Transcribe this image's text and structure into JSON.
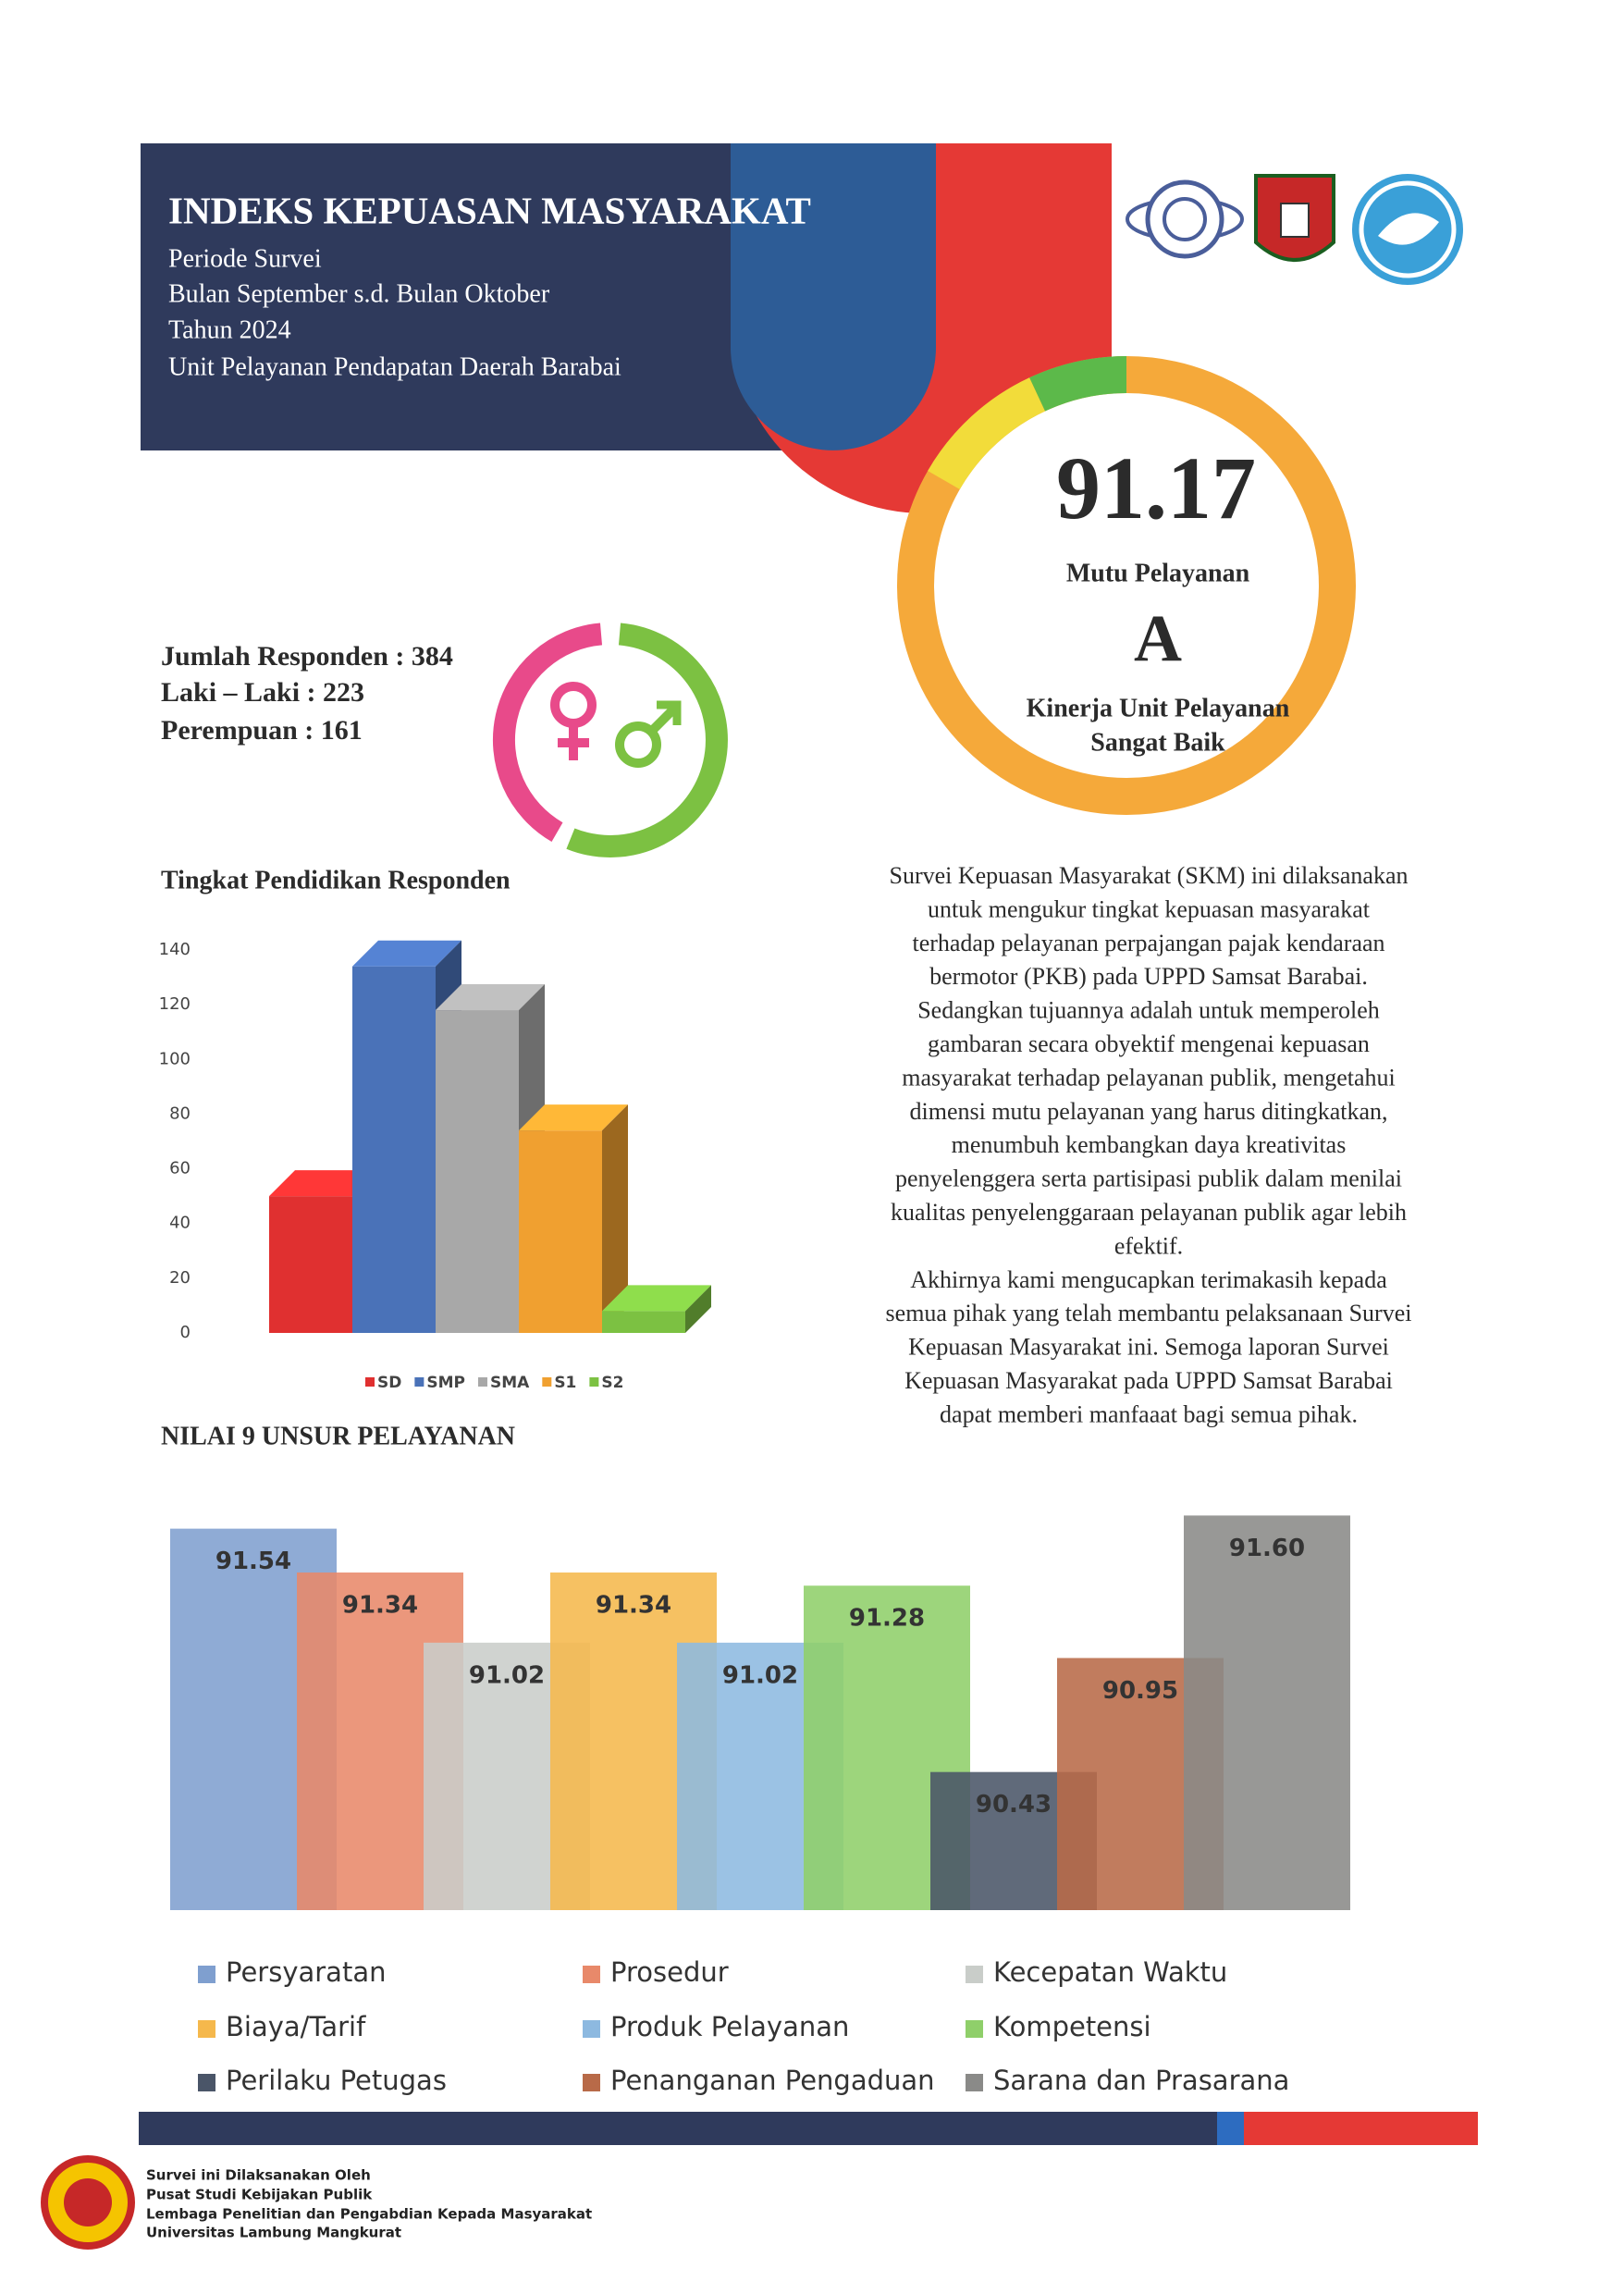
{
  "header": {
    "title": "INDEKS KEPUASAN MASYARAKAT",
    "lines": [
      "Periode Survei",
      "Bulan September s.d. Bulan Oktober",
      "Tahun 2024",
      "Unit Pelayanan Pendapatan Daerah Barabai"
    ]
  },
  "score": {
    "value": "91.17",
    "value_caption": "Mutu Pelayanan",
    "grade": "A",
    "grade_caption": [
      "Kinerja Unit Pelayanan",
      "Sangat Baik"
    ]
  },
  "respondents": [
    "Jumlah Responden : 384",
    "Laki – Laki : 223",
    "Perempuan : 161"
  ],
  "description": [
    [
      "Survei Kepuasan Masyarakat (SKM) ini dilaksanakan",
      "untuk mengukur tingkat kepuasan masyarakat",
      "terhadap pelayanan perpajangan pajak kendaraan",
      "bermotor (PKB) pada UPPD Samsat Barabai."
    ],
    [
      "Sedangkan tujuannya adalah untuk memperoleh",
      "gambaran secara obyektif mengenai kepuasan",
      "masyarakat terhadap pelayanan publik, mengetahui",
      "dimensi mutu pelayanan yang harus ditingkatkan,",
      "menumbuh kembangkan daya kreativitas",
      "penyelenggera serta partisipasi publik dalam menilai",
      "kualitas penyelenggaraan pelayanan publik agar lebih",
      "efektif."
    ],
    [
      "Akhirnya kami mengucapkan terimakasih kepada",
      "semua pihak yang telah membantu pelaksanaan Survei",
      "Kepuasan Masyarakat ini. Semoga laporan Survei",
      "Kepuasan Masyarakat pada UPPD Samsat Barabai",
      "dapat memberi manfaaat bagi semua pihak."
    ]
  ],
  "chart_data": [
    {
      "type": "bar",
      "bar_3d": true,
      "title": "Tingkat Pendidikan Responden",
      "categories": [
        "SD",
        "SMP",
        "SMA",
        "S1",
        "S2"
      ],
      "values": [
        50,
        134,
        118,
        74,
        8
      ],
      "colors": [
        "#e03030",
        "#4a72b8",
        "#a8a8a8",
        "#f0a030",
        "#7cc142"
      ],
      "ylim": [
        0,
        140
      ],
      "yticks": [
        0,
        20,
        40,
        60,
        80,
        100,
        120,
        140
      ],
      "grid": false
    },
    {
      "type": "bar",
      "bar_3d": false,
      "title": "NILAI 9 UNSUR PELAYANAN",
      "categories": [
        "Persyaratan",
        "Prosedur",
        "Kecepatan Waktu",
        "Biaya/Tarif",
        "Produk Pelayanan",
        "Kompetensi",
        "Perilaku Petugas",
        "Penanganan Pengaduan",
        "Sarana dan Prasarana"
      ],
      "values": [
        91.54,
        91.34,
        91.02,
        91.34,
        91.02,
        91.28,
        90.43,
        90.95,
        91.6
      ],
      "value_labels": [
        "91.54",
        "91.34",
        "91.02",
        "91.34",
        "91.02",
        "91.28",
        "90.43",
        "90.95",
        "91.60"
      ],
      "colors": [
        "#7f9fcf",
        "#e8896a",
        "#c9cdc9",
        "#f5b84c",
        "#8db9e0",
        "#8fcf6a",
        "#4a5568",
        "#b86a48",
        "#8a8a88"
      ],
      "ylim": [
        89.8,
        91.8
      ],
      "grid": false
    }
  ],
  "footer": [
    "Survei ini Dilaksanakan Oleh",
    "Pusat Studi Kebijakan Publik",
    "Lembaga Penelitian dan Pengabdian Kepada Masyarakat",
    "Universitas Lambung Mangkurat"
  ]
}
